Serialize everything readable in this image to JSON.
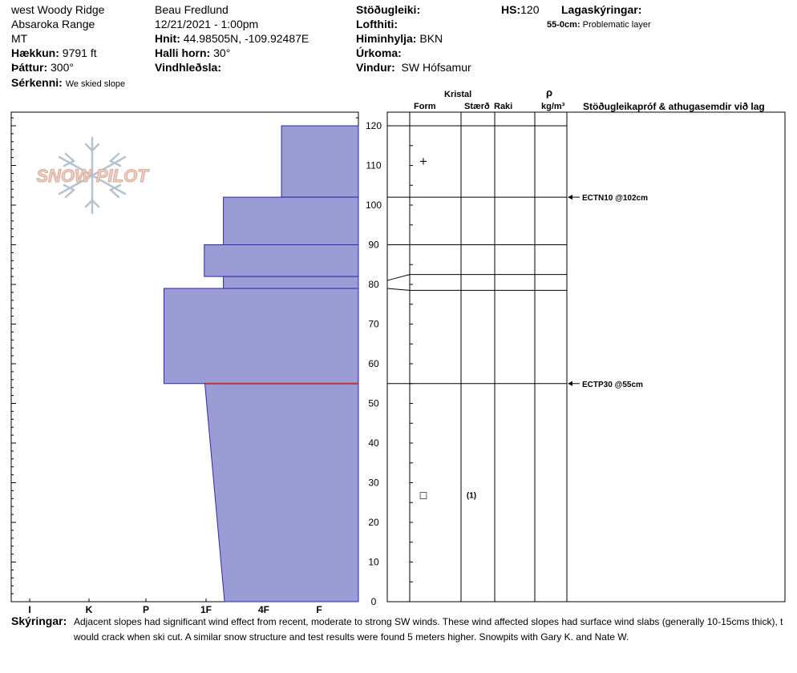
{
  "header": {
    "location": [
      "west Woody Ridge",
      "Absaroka Range",
      "MT"
    ],
    "elevation": {
      "label": "Hækkun:",
      "value": "9791 ft"
    },
    "aspect": {
      "label": "Þáttur:",
      "value": "300°"
    },
    "features": {
      "label": "Sérkenni:",
      "value": "We skied slope"
    },
    "observer": "Beau  Fredlund",
    "datetime": "12/21/2021 - 1:00pm",
    "coords": {
      "label": "Hnit:",
      "value": "44.98505N, -109.92487E"
    },
    "slope": {
      "label": "Halli horn:",
      "value": "30°"
    },
    "wind_loading": {
      "label": "Vindhleðsla:",
      "value": ""
    },
    "stability": {
      "label": "Stöðugleiki:",
      "value": ""
    },
    "air_temp": {
      "label": "Lofthiti:",
      "value": ""
    },
    "sky": {
      "label": "Himinhylja:",
      "value": "BKN"
    },
    "precip": {
      "label": "Úrkoma:",
      "value": ""
    },
    "wind": {
      "label": "Vindur:",
      "value": "SW Hófsamur"
    },
    "hs": {
      "label": "HS:",
      "value": "120"
    },
    "legend": {
      "label": "Lagaskýringar:",
      "range": "55-0cm:",
      "text": "Problematic layer"
    }
  },
  "columns": {
    "crystal": "Kristal",
    "form": "Form",
    "size": "Stærð",
    "moisture": "Raki",
    "rho": "ρ",
    "density_unit": "kg/m³",
    "comments": "Stöðugleikapróf & athugasemdir við lag"
  },
  "notes": {
    "label": "Skýringar:",
    "text": "Adjacent slopes had significant wind effect from recent, moderate to strong SW winds.  These wind affected slopes had surface wind slabs (generally 10-15cms thick), t would crack when ski cut.  A similar snow structure and test results were found 5 meters higher.  Snowpits with Gary K. and Nate W."
  },
  "logo": {
    "text": "SNOW PILOT"
  },
  "chart_data": {
    "type": "area",
    "title": "",
    "xlabel": "",
    "ylabel": "",
    "hardness_scale": [
      "I",
      "K",
      "P",
      "1F",
      "4F",
      "F"
    ],
    "ylim": [
      0,
      120
    ],
    "yticks": [
      0,
      10,
      20,
      30,
      40,
      50,
      60,
      70,
      80,
      90,
      100,
      110,
      120
    ],
    "layers": [
      {
        "top": 120,
        "bottom": 102,
        "hardness_top": 0.68,
        "hardness_bottom": 0.68
      },
      {
        "top": 102,
        "bottom": 90,
        "hardness_top": 1.7,
        "hardness_bottom": 1.7
      },
      {
        "top": 90,
        "bottom": 82,
        "hardness_top": 2.03,
        "hardness_bottom": 2.03
      },
      {
        "top": 82,
        "bottom": 79,
        "hardness_top": 1.7,
        "hardness_bottom": 1.7
      },
      {
        "top": 79,
        "bottom": 55,
        "hardness_top": 2.7,
        "hardness_bottom": 2.7
      },
      {
        "top": 55,
        "bottom": 0,
        "hardness_top": 2.02,
        "hardness_bottom": 1.68
      }
    ],
    "problematic_layer_depth": 55,
    "crystal_marks": [
      {
        "depth": 111,
        "symbol": "+",
        "size": ""
      },
      {
        "depth": 27,
        "symbol": "□",
        "size": "(1)"
      }
    ],
    "tests": [
      {
        "depth": 102,
        "text": "ECTN10 @102cm"
      },
      {
        "depth": 55,
        "text": "ECTP30 @55cm"
      }
    ],
    "layer_lines_right": [
      120,
      102,
      90,
      82.5,
      78.5,
      55
    ],
    "layer_lines_left": [
      120,
      102,
      90,
      81,
      79,
      55
    ],
    "colors": {
      "fill": "#9b9bd6",
      "outline": "#2a2aa6",
      "problem": "#c0303a"
    }
  }
}
